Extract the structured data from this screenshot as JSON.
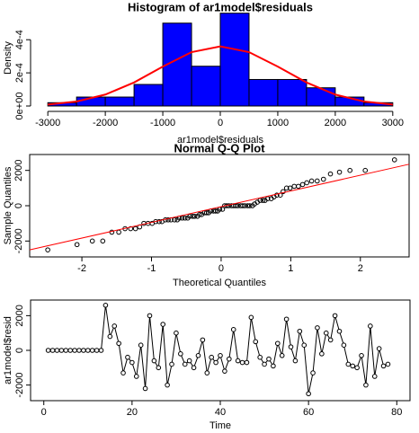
{
  "chart_data": [
    {
      "type": "histogram",
      "title": "Histogram of ar1model$residuals",
      "x_label": "ar1model$residuals",
      "y_label": "Density",
      "bins": [
        -3000,
        -2500,
        -2000,
        -1500,
        -1000,
        -500,
        0,
        500,
        1000,
        1500,
        2000,
        2500,
        3000
      ],
      "values": [
        2e-05,
        5.4e-05,
        5.4e-05,
        0.00013,
        0.0005,
        0.00024,
        0.00056,
        0.00016,
        0.00016,
        0.00011,
        5.4e-05,
        2e-05
      ],
      "color": "#0000ff",
      "density_curve": {
        "color": "#ff0000",
        "x": [
          -3000,
          -2500,
          -2000,
          -1500,
          -1000,
          -500,
          0,
          500,
          1000,
          1500,
          2000,
          2500,
          3000
        ],
        "y": [
          9e-06,
          2.7e-05,
          6.9e-05,
          0.000142,
          0.000238,
          0.000325,
          0.00036,
          0.000325,
          0.000238,
          0.000142,
          6.9e-05,
          2.7e-05,
          9e-06
        ]
      },
      "xlim": [
        -3300,
        3300
      ],
      "ylim": [
        0,
        0.00058
      ],
      "xticks": [
        -3000,
        -2000,
        -1000,
        0,
        1000,
        2000,
        3000
      ],
      "yticks": [
        {
          "value": 0,
          "label": "0e+00"
        },
        {
          "value": 0.0002,
          "label": "2e-4"
        },
        {
          "value": 0.0004,
          "label": "4e-4"
        }
      ]
    },
    {
      "type": "qq",
      "title": "Normal Q-Q Plot",
      "x_label": "Theoretical Quantiles",
      "y_label": "Sample Quantiles",
      "x": [
        -2.49,
        -2.07,
        -1.85,
        -1.7,
        -1.57,
        -1.47,
        -1.38,
        -1.3,
        -1.23,
        -1.17,
        -1.11,
        -1.05,
        -0.99,
        -0.94,
        -0.89,
        -0.85,
        -0.8,
        -0.76,
        -0.72,
        -0.67,
        -0.63,
        -0.6,
        -0.56,
        -0.52,
        -0.48,
        -0.45,
        -0.41,
        -0.38,
        -0.34,
        -0.31,
        -0.28,
        -0.24,
        -0.21,
        -0.18,
        -0.15,
        -0.11,
        -0.08,
        -0.05,
        -0.02,
        0.02,
        0.05,
        0.08,
        0.11,
        0.15,
        0.18,
        0.21,
        0.24,
        0.28,
        0.31,
        0.34,
        0.38,
        0.41,
        0.45,
        0.48,
        0.52,
        0.56,
        0.6,
        0.63,
        0.67,
        0.72,
        0.76,
        0.8,
        0.85,
        0.89,
        0.94,
        0.99,
        1.05,
        1.11,
        1.17,
        1.23,
        1.3,
        1.38,
        1.47,
        1.57,
        1.7,
        1.85,
        2.07,
        2.49
      ],
      "y": [
        -2500,
        -2200,
        -2000,
        -2000,
        -1500,
        -1500,
        -1300,
        -1300,
        -1300,
        -1200,
        -1000,
        -1000,
        -1000,
        -900,
        -900,
        -900,
        -800,
        -800,
        -800,
        -800,
        -800,
        -700,
        -700,
        -700,
        -700,
        -600,
        -600,
        -600,
        -600,
        -500,
        -500,
        -400,
        -400,
        -400,
        -300,
        -300,
        -300,
        -300,
        -200,
        -200,
        0,
        0,
        0,
        0,
        0,
        0,
        0,
        0,
        0,
        0,
        0,
        0,
        0,
        100,
        200,
        300,
        300,
        300,
        400,
        400,
        500,
        600,
        600,
        800,
        1000,
        1000,
        1100,
        1100,
        1200,
        1300,
        1400,
        1400,
        1500,
        1800,
        1900,
        2000,
        2000,
        2600
      ],
      "color": "#000000",
      "line": {
        "color": "#ff0000",
        "x": [
          -2.75,
          2.7
        ],
        "y": [
          -2500,
          2350
        ]
      },
      "xlim": [
        -2.75,
        2.7
      ],
      "ylim": [
        -2900,
        2900
      ],
      "xticks": [
        -2,
        -1,
        0,
        1,
        2
      ],
      "yticks": [
        -2000,
        0,
        2000
      ]
    },
    {
      "type": "line",
      "x_label": "Time",
      "y_label": "ar1model$resid",
      "x": [
        1,
        2,
        3,
        4,
        5,
        6,
        7,
        8,
        9,
        10,
        11,
        12,
        13,
        14,
        15,
        16,
        17,
        18,
        19,
        20,
        21,
        22,
        23,
        24,
        25,
        26,
        27,
        28,
        29,
        30,
        31,
        32,
        33,
        34,
        35,
        36,
        37,
        38,
        39,
        40,
        41,
        42,
        43,
        44,
        45,
        46,
        47,
        48,
        49,
        50,
        51,
        52,
        53,
        54,
        55,
        56,
        57,
        58,
        59,
        60,
        61,
        62,
        63,
        64,
        65,
        66,
        67,
        68,
        69,
        70,
        71,
        72,
        73,
        74,
        75,
        76,
        77,
        78
      ],
      "values": [
        0,
        0,
        0,
        0,
        0,
        0,
        0,
        0,
        0,
        0,
        0,
        0,
        0,
        2600,
        800,
        1400,
        400,
        -1300,
        -400,
        -700,
        -1500,
        300,
        -2200,
        2000,
        -600,
        -1000,
        1500,
        -2000,
        -800,
        1000,
        -200,
        -800,
        -600,
        -1000,
        -300,
        600,
        -1300,
        -400,
        -700,
        -300,
        -1200,
        -500,
        1200,
        -600,
        -700,
        -700,
        1900,
        500,
        -400,
        -800,
        -500,
        -900,
        400,
        -300,
        1800,
        200,
        -600,
        1100,
        300,
        -2500,
        -1300,
        1300,
        -200,
        1000,
        600,
        2000,
        1100,
        300,
        -800,
        -900,
        -1000,
        -300,
        -2000,
        1400,
        -1500,
        100,
        -900,
        -800
      ],
      "color": "#000000",
      "xlim": [
        -3,
        83
      ],
      "ylim": [
        -2900,
        2900
      ],
      "xticks": [
        0,
        20,
        40,
        60,
        80
      ],
      "yticks": [
        -2000,
        0,
        2000
      ]
    }
  ]
}
